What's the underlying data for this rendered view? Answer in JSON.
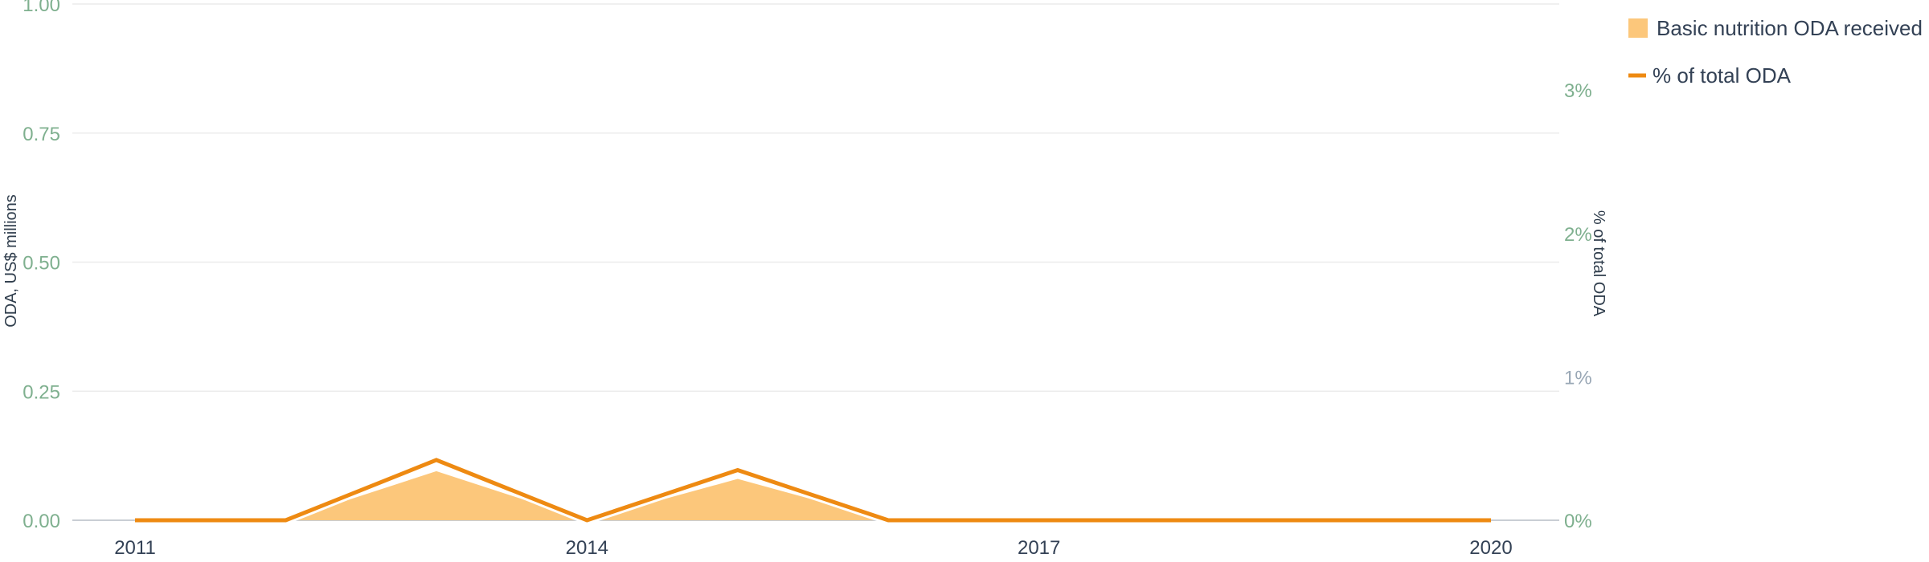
{
  "chart_data": {
    "type": "area",
    "x": [
      2011,
      2012,
      2013,
      2014,
      2015,
      2016,
      2017,
      2018,
      2019,
      2020
    ],
    "x_ticks": [
      "2011",
      "2014",
      "2017",
      "2020"
    ],
    "series": [
      {
        "name": "Basic nutrition ODA received",
        "kind": "area",
        "axis": "left",
        "color": "#fcc77b",
        "values": [
          0,
          0,
          0.095,
          0,
          0.08,
          0,
          0,
          0,
          0,
          0
        ]
      },
      {
        "name": "% of total ODA",
        "kind": "line",
        "axis": "right",
        "color": "#ee8a12",
        "values": [
          0,
          0,
          0.42,
          0,
          0.35,
          0,
          0,
          0,
          0,
          0
        ]
      }
    ],
    "y_left": {
      "label": "ODA, US$ millions",
      "lim": [
        0,
        1
      ],
      "ticks": [
        0,
        0.25,
        0.5,
        0.75,
        1
      ],
      "tick_labels": [
        "0.00",
        "0.25",
        "0.50",
        "0.75",
        "1.00"
      ],
      "tick_color": "#7fb08f"
    },
    "y_right": {
      "label": "% of total ODA",
      "lim": [
        0,
        3.6
      ],
      "ticks": [
        0,
        1,
        2,
        3
      ],
      "tick_labels": [
        "0%",
        "1%",
        "2%",
        "3%"
      ],
      "tick_color": "#9aa8b6",
      "tick_colors": [
        "#7fb08f",
        "#9aa8b6",
        "#7fb08f",
        "#7fb08f"
      ]
    },
    "grid": true,
    "legend_position": "top-right"
  }
}
